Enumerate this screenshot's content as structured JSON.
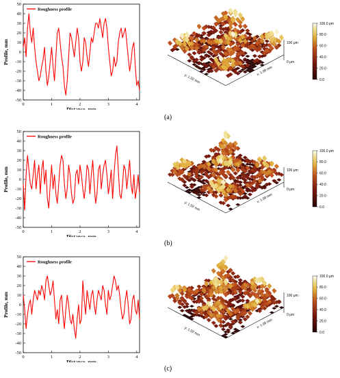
{
  "chart_data": [
    {
      "type": "line",
      "panel_label": "(a)",
      "legend": "Roughness profile",
      "xlabel": "Distance, mm",
      "ylabel": "Profile, mm",
      "xlim": [
        0,
        4.1
      ],
      "ylim": [
        -50,
        50
      ],
      "xticks": [
        0,
        1,
        2,
        3,
        4
      ],
      "yticks": [
        -50,
        -40,
        -30,
        -20,
        -10,
        0,
        10,
        20,
        30,
        40,
        50
      ],
      "color": "#ff0000",
      "series": [
        {
          "x": [
            0,
            0.05,
            0.1,
            0.15,
            0.2,
            0.25,
            0.3,
            0.35,
            0.4,
            0.45,
            0.5,
            0.55,
            0.6,
            0.65,
            0.7,
            0.75,
            0.8,
            0.85,
            0.9,
            0.95,
            1.0,
            1.05,
            1.1,
            1.15,
            1.2,
            1.25,
            1.3,
            1.35,
            1.4,
            1.45,
            1.5,
            1.55,
            1.6,
            1.65,
            1.7,
            1.75,
            1.8,
            1.85,
            1.9,
            1.95,
            2.0,
            2.05,
            2.1,
            2.15,
            2.2,
            2.25,
            2.3,
            2.35,
            2.4,
            2.45,
            2.5,
            2.55,
            2.6,
            2.65,
            2.7,
            2.75,
            2.8,
            2.85,
            2.9,
            2.95,
            3.0,
            3.05,
            3.1,
            3.15,
            3.2,
            3.25,
            3.3,
            3.35,
            3.4,
            3.45,
            3.5,
            3.55,
            3.6,
            3.65,
            3.7,
            3.75,
            3.8,
            3.85,
            3.9,
            3.95,
            4.0,
            4.05,
            4.1
          ],
          "y": [
            5,
            15,
            -5,
            25,
            40,
            20,
            10,
            25,
            5,
            -10,
            -20,
            -30,
            -25,
            -15,
            -8,
            5,
            -20,
            -35,
            -25,
            -10,
            5,
            -15,
            -30,
            -5,
            20,
            25,
            10,
            -5,
            -15,
            -35,
            -45,
            -30,
            -5,
            20,
            15,
            5,
            -5,
            10,
            25,
            15,
            -10,
            -20,
            -10,
            15,
            10,
            -5,
            -15,
            0,
            15,
            10,
            20,
            30,
            30,
            25,
            35,
            25,
            15,
            30,
            35,
            25,
            5,
            -10,
            -25,
            -20,
            -5,
            -15,
            -10,
            10,
            20,
            25,
            15,
            20,
            25,
            10,
            -5,
            -20,
            -10,
            5,
            10,
            -15,
            -35,
            -30,
            -40
          ]
        }
      ]
    },
    {
      "type": "line",
      "panel_label": "(b)",
      "legend": "Roughness profile",
      "xlabel": "Distance, mm",
      "ylabel": "Profile, mm",
      "xlim": [
        0,
        4.1
      ],
      "ylim": [
        -50,
        50
      ],
      "xticks": [
        0,
        1,
        2,
        3,
        4
      ],
      "yticks": [
        -50,
        -40,
        -30,
        -20,
        -10,
        0,
        10,
        20,
        30,
        40,
        50
      ],
      "color": "#ff0000",
      "series": [
        {
          "x": [
            0,
            0.05,
            0.1,
            0.15,
            0.2,
            0.25,
            0.3,
            0.35,
            0.4,
            0.45,
            0.5,
            0.55,
            0.6,
            0.65,
            0.7,
            0.75,
            0.8,
            0.85,
            0.9,
            0.95,
            1.0,
            1.05,
            1.1,
            1.15,
            1.2,
            1.25,
            1.3,
            1.35,
            1.4,
            1.45,
            1.5,
            1.55,
            1.6,
            1.65,
            1.7,
            1.75,
            1.8,
            1.85,
            1.9,
            1.95,
            2.0,
            2.05,
            2.1,
            2.15,
            2.2,
            2.25,
            2.3,
            2.35,
            2.4,
            2.45,
            2.5,
            2.55,
            2.6,
            2.65,
            2.7,
            2.75,
            2.8,
            2.85,
            2.9,
            2.95,
            3.0,
            3.05,
            3.1,
            3.15,
            3.2,
            3.25,
            3.3,
            3.35,
            3.4,
            3.45,
            3.5,
            3.55,
            3.6,
            3.65,
            3.7,
            3.75,
            3.8,
            3.85,
            3.9,
            3.95,
            4.0,
            4.05,
            4.1
          ],
          "y": [
            -5,
            -32,
            5,
            25,
            10,
            -5,
            -10,
            5,
            20,
            -10,
            5,
            15,
            -15,
            10,
            20,
            -5,
            10,
            -20,
            -30,
            -5,
            15,
            -10,
            5,
            -15,
            -25,
            -5,
            15,
            25,
            20,
            -5,
            -20,
            -10,
            15,
            5,
            -15,
            -25,
            -20,
            5,
            10,
            -5,
            15,
            5,
            -10,
            -20,
            -5,
            15,
            10,
            -15,
            5,
            20,
            -5,
            -25,
            -15,
            10,
            15,
            -10,
            5,
            15,
            20,
            5,
            -15,
            -5,
            10,
            -20,
            5,
            25,
            35,
            10,
            -15,
            -20,
            -5,
            15,
            10,
            -10,
            5,
            20,
            -5,
            -15,
            5,
            -20,
            -10,
            5,
            -15
          ]
        }
      ]
    },
    {
      "type": "line",
      "panel_label": "(c)",
      "legend": "Roughness profile",
      "xlabel": "Distance, mm",
      "ylabel": "Profile, mm",
      "xlim": [
        0,
        4.1
      ],
      "ylim": [
        -50,
        50
      ],
      "xticks": [
        0,
        1,
        2,
        3,
        4
      ],
      "yticks": [
        -50,
        -40,
        -30,
        -20,
        -10,
        0,
        10,
        20,
        30,
        40,
        50
      ],
      "color": "#ff0000",
      "series": [
        {
          "x": [
            0,
            0.05,
            0.1,
            0.15,
            0.2,
            0.25,
            0.3,
            0.35,
            0.4,
            0.45,
            0.5,
            0.55,
            0.6,
            0.65,
            0.7,
            0.75,
            0.8,
            0.85,
            0.9,
            0.95,
            1.0,
            1.05,
            1.1,
            1.15,
            1.2,
            1.25,
            1.3,
            1.35,
            1.4,
            1.45,
            1.5,
            1.55,
            1.6,
            1.65,
            1.7,
            1.75,
            1.8,
            1.85,
            1.9,
            1.95,
            2.0,
            2.05,
            2.1,
            2.15,
            2.2,
            2.25,
            2.3,
            2.35,
            2.4,
            2.45,
            2.5,
            2.55,
            2.6,
            2.65,
            2.7,
            2.75,
            2.8,
            2.85,
            2.9,
            2.95,
            3.0,
            3.05,
            3.1,
            3.15,
            3.2,
            3.25,
            3.3,
            3.35,
            3.4,
            3.45,
            3.5,
            3.55,
            3.6,
            3.65,
            3.7,
            3.75,
            3.8,
            3.85,
            3.9,
            3.95,
            4.0,
            4.05,
            4.1
          ],
          "y": [
            10,
            -5,
            -25,
            -10,
            0,
            5,
            -10,
            5,
            15,
            10,
            5,
            15,
            10,
            20,
            15,
            5,
            25,
            30,
            20,
            10,
            15,
            25,
            5,
            -15,
            -5,
            -20,
            5,
            10,
            -10,
            -25,
            -5,
            10,
            0,
            -15,
            -20,
            -10,
            -25,
            -35,
            -15,
            0,
            -20,
            -15,
            25,
            5,
            -10,
            15,
            5,
            -5,
            10,
            15,
            0,
            -10,
            5,
            15,
            10,
            5,
            20,
            15,
            0,
            -10,
            15,
            5,
            10,
            20,
            30,
            25,
            15,
            20,
            10,
            -5,
            -15,
            -10,
            5,
            15,
            0,
            -20,
            -15,
            5,
            10,
            -5,
            -10,
            5,
            -15
          ]
        }
      ]
    }
  ],
  "surfaces": [
    {
      "axis_y": "y: 1.02 mm",
      "axis_x": "x: 1.00 mm",
      "z_label_top": "100 μm",
      "z_label_bottom": "0 μm",
      "colorbar": [
        "100.0 μm",
        "80.0",
        "60.0",
        "40.0",
        "20.0",
        "0.0"
      ]
    },
    {
      "axis_y": "y: 1.02 mm",
      "axis_x": "x: 1.00 mm",
      "z_label_top": "100 μm",
      "z_label_bottom": "0 μm",
      "colorbar": [
        "100.0 μm",
        "80.0",
        "60.0",
        "40.0",
        "20.0",
        "0.0"
      ]
    },
    {
      "axis_y": "y: 1.02 mm",
      "axis_x": "x: 1.00 mm",
      "z_label_top": "100 μm",
      "z_label_bottom": "0 μm",
      "colorbar": [
        "100.0 μm",
        "80.0",
        "60.0",
        "40.0",
        "20.0",
        "0.0"
      ]
    }
  ],
  "colors": {
    "line": "#ff0000",
    "surface_dark": "#5a0f0f",
    "surface_mid": "#b04520",
    "surface_high": "#e0c040",
    "surface_peak": "#f0f0f0"
  }
}
